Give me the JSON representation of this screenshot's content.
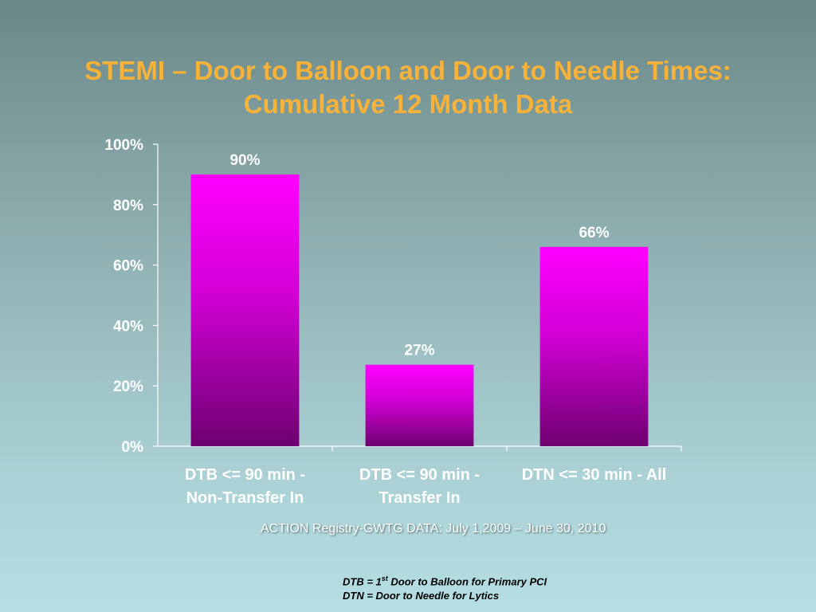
{
  "title": {
    "line1": "STEMI – Door to Balloon and Door to Needle Times:",
    "line2": "Cumulative 12 Month Data"
  },
  "chart_data": {
    "type": "bar",
    "categories": [
      [
        "DTB <= 90 min -",
        "Non-Transfer In"
      ],
      [
        "DTB <= 90 min -",
        "Transfer In"
      ],
      [
        "DTN <= 30 min - All"
      ]
    ],
    "values": [
      90,
      27,
      66
    ],
    "data_labels": [
      "90%",
      "27%",
      "66%"
    ],
    "y_ticks": [
      "0%",
      "20%",
      "40%",
      "60%",
      "80%",
      "100%"
    ],
    "ylim": [
      0,
      100
    ],
    "grid": false,
    "colors": {
      "bar_top": "#ff00ff",
      "bar_bottom": "#6e0070"
    }
  },
  "source_text": "ACTION Registry-GWTG DATA: July 1,2009 – June 30, 2010",
  "notes": {
    "line1_pre": "DTB = 1",
    "line1_sup": "st",
    "line1_post": " Door to Balloon for Primary PCI",
    "line2": "DTN = Door to Needle for Lytics"
  }
}
